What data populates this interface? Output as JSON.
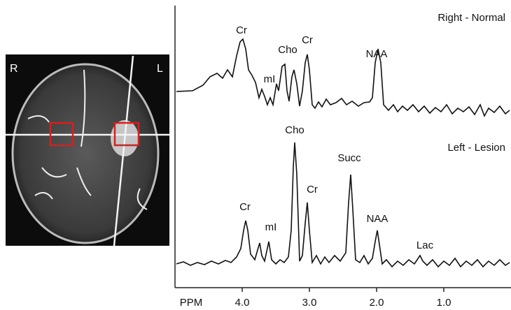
{
  "image": {
    "left_label": "R",
    "right_label": "L"
  },
  "spectra": [
    {
      "title": "Right - Normal",
      "peaks": [
        "Cr",
        "mI",
        "Cho",
        "Cr",
        "NAA"
      ]
    },
    {
      "title": "Left - Lesion",
      "peaks": [
        "Cr",
        "mI",
        "Cho",
        "Cr",
        "Succ",
        "NAA",
        "Lac"
      ]
    }
  ],
  "axis": {
    "label": "PPM",
    "xlim": [
      5,
      0
    ],
    "xticks": [
      {
        "value": 4,
        "label": "4.0"
      },
      {
        "value": 3,
        "label": "3.0"
      },
      {
        "value": 2,
        "label": "2.0"
      },
      {
        "value": 1,
        "label": "1.0"
      }
    ]
  }
}
